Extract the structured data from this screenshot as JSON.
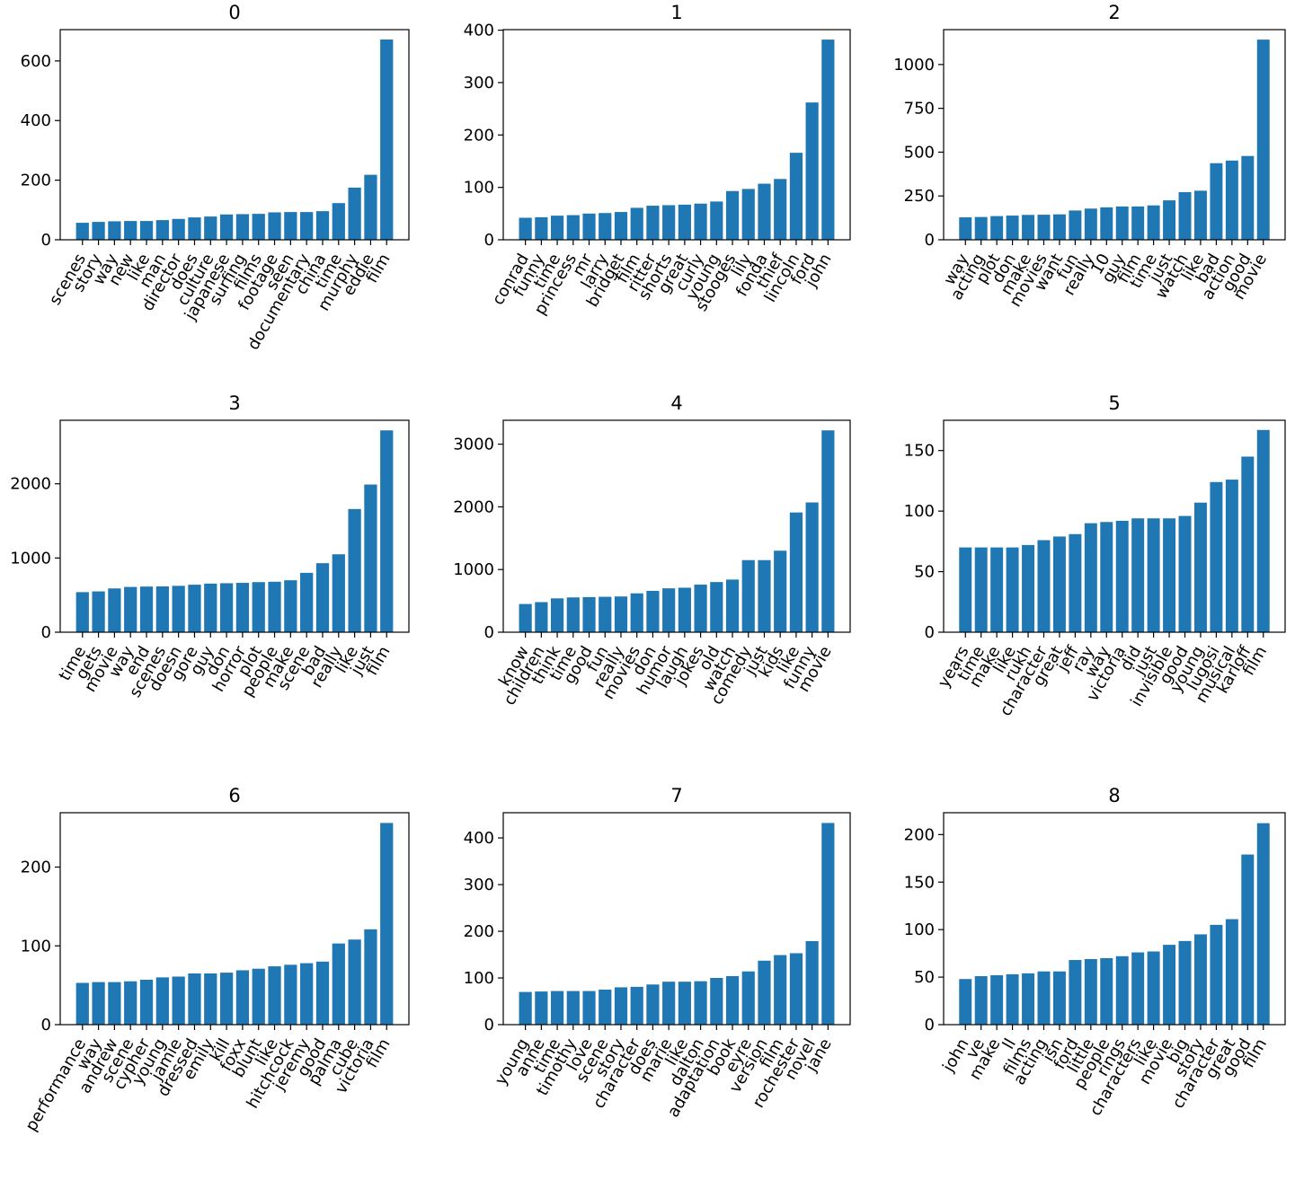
{
  "chart_data": [
    {
      "type": "bar",
      "title": "0",
      "color": "#1f77b4",
      "ylim": [
        0,
        705
      ],
      "yticks": [
        0,
        200,
        400,
        600
      ],
      "categories": [
        "scenes",
        "story",
        "way",
        "new",
        "like",
        "man",
        "director",
        "does",
        "culture",
        "japanese",
        "surfing",
        "films",
        "footage",
        "seen",
        "documentary",
        "china",
        "time",
        "murphy",
        "eddie",
        "film"
      ],
      "values": [
        57,
        60,
        62,
        63,
        63,
        66,
        70,
        75,
        78,
        85,
        86,
        87,
        92,
        93,
        93,
        96,
        123,
        175,
        218,
        672
      ]
    },
    {
      "type": "bar",
      "title": "1",
      "color": "#1f77b4",
      "ylim": [
        0,
        401
      ],
      "yticks": [
        0,
        100,
        200,
        300,
        400
      ],
      "categories": [
        "conrad",
        "funny",
        "time",
        "princess",
        "mr",
        "larry",
        "bridget",
        "film",
        "ritter",
        "shorts",
        "great",
        "curly",
        "young",
        "stooges",
        "lily",
        "fonda",
        "thief",
        "lincoln",
        "ford",
        "john"
      ],
      "values": [
        42,
        43,
        46,
        47,
        50,
        51,
        53,
        61,
        65,
        66,
        67,
        69,
        73,
        93,
        97,
        107,
        116,
        166,
        262,
        382
      ]
    },
    {
      "type": "bar",
      "title": "2",
      "color": "#1f77b4",
      "ylim": [
        0,
        1199
      ],
      "yticks": [
        0,
        250,
        500,
        750,
        1000
      ],
      "categories": [
        "way",
        "acting",
        "plot",
        "don",
        "make",
        "movies",
        "want",
        "fun",
        "really",
        "10",
        "guy",
        "film",
        "time",
        "just",
        "watch",
        "like",
        "bad",
        "action",
        "good",
        "movie"
      ],
      "values": [
        128,
        130,
        135,
        138,
        142,
        143,
        145,
        167,
        178,
        185,
        190,
        190,
        196,
        225,
        272,
        280,
        437,
        452,
        478,
        1142
      ]
    },
    {
      "type": "bar",
      "title": "3",
      "color": "#1f77b4",
      "ylim": [
        0,
        2856
      ],
      "yticks": [
        0,
        1000,
        2000
      ],
      "categories": [
        "time",
        "gets",
        "movie",
        "way",
        "end",
        "scenes",
        "doesn",
        "gore",
        "guy",
        "don",
        "horror",
        "plot",
        "people",
        "make",
        "scene",
        "bad",
        "really",
        "like",
        "just",
        "film"
      ],
      "values": [
        540,
        550,
        590,
        610,
        615,
        617,
        625,
        640,
        655,
        660,
        665,
        675,
        680,
        700,
        800,
        930,
        1050,
        1660,
        1990,
        2720
      ]
    },
    {
      "type": "bar",
      "title": "4",
      "color": "#1f77b4",
      "ylim": [
        0,
        3381
      ],
      "yticks": [
        0,
        1000,
        2000,
        3000
      ],
      "categories": [
        "know",
        "children",
        "think",
        "time",
        "good",
        "fun",
        "really",
        "movies",
        "don",
        "humor",
        "laugh",
        "jokes",
        "old",
        "watch",
        "comedy",
        "just",
        "kids",
        "like",
        "funny",
        "movie"
      ],
      "values": [
        450,
        480,
        540,
        555,
        560,
        565,
        570,
        620,
        660,
        700,
        710,
        760,
        800,
        840,
        1150,
        1150,
        1300,
        1910,
        2070,
        3220
      ]
    },
    {
      "type": "bar",
      "title": "5",
      "color": "#1f77b4",
      "ylim": [
        0,
        175
      ],
      "yticks": [
        0,
        50,
        100,
        150
      ],
      "categories": [
        "years",
        "time",
        "make",
        "like",
        "rukh",
        "character",
        "great",
        "jeff",
        "ray",
        "way",
        "victoria",
        "did",
        "just",
        "invisible",
        "good",
        "young",
        "lugosi",
        "musical",
        "karloff",
        "film"
      ],
      "values": [
        70,
        70,
        70,
        70,
        72,
        76,
        79,
        81,
        90,
        91,
        92,
        94,
        94,
        94,
        96,
        107,
        124,
        126,
        145,
        167
      ]
    },
    {
      "type": "bar",
      "title": "6",
      "color": "#1f77b4",
      "ylim": [
        0,
        269
      ],
      "yticks": [
        0,
        100,
        200
      ],
      "categories": [
        "performance",
        "way",
        "andrew",
        "scene",
        "cypher",
        "young",
        "jamie",
        "dressed",
        "emily",
        "kill",
        "foxx",
        "blunt",
        "like",
        "hitchcock",
        "jeremy",
        "good",
        "palma",
        "cube",
        "victoria",
        "film"
      ],
      "values": [
        53,
        54,
        54,
        55,
        57,
        60,
        61,
        65,
        65,
        66,
        69,
        71,
        74,
        76,
        78,
        80,
        103,
        108,
        121,
        256
      ]
    },
    {
      "type": "bar",
      "title": "7",
      "color": "#1f77b4",
      "ylim": [
        0,
        454
      ],
      "yticks": [
        0,
        100,
        200,
        300,
        400
      ],
      "categories": [
        "young",
        "anne",
        "time",
        "timothy",
        "love",
        "scene",
        "story",
        "character",
        "does",
        "marie",
        "like",
        "dalton",
        "adaptation",
        "book",
        "eyre",
        "version",
        "film",
        "rochester",
        "novel",
        "jane"
      ],
      "values": [
        70,
        71,
        72,
        72,
        72,
        75,
        80,
        81,
        86,
        92,
        92,
        93,
        100,
        104,
        114,
        137,
        149,
        153,
        179,
        432
      ]
    },
    {
      "type": "bar",
      "title": "8",
      "color": "#1f77b4",
      "ylim": [
        0,
        223
      ],
      "yticks": [
        0,
        50,
        100,
        150,
        200
      ],
      "categories": [
        "john",
        "ve",
        "make",
        "ll",
        "films",
        "acting",
        "isn",
        "ford",
        "little",
        "people",
        "rings",
        "characters",
        "like",
        "movie",
        "big",
        "story",
        "character",
        "great",
        "good",
        "film"
      ],
      "values": [
        48,
        51,
        52,
        53,
        54,
        56,
        56,
        68,
        69,
        70,
        72,
        76,
        77,
        84,
        88,
        95,
        105,
        111,
        179,
        212
      ]
    }
  ]
}
